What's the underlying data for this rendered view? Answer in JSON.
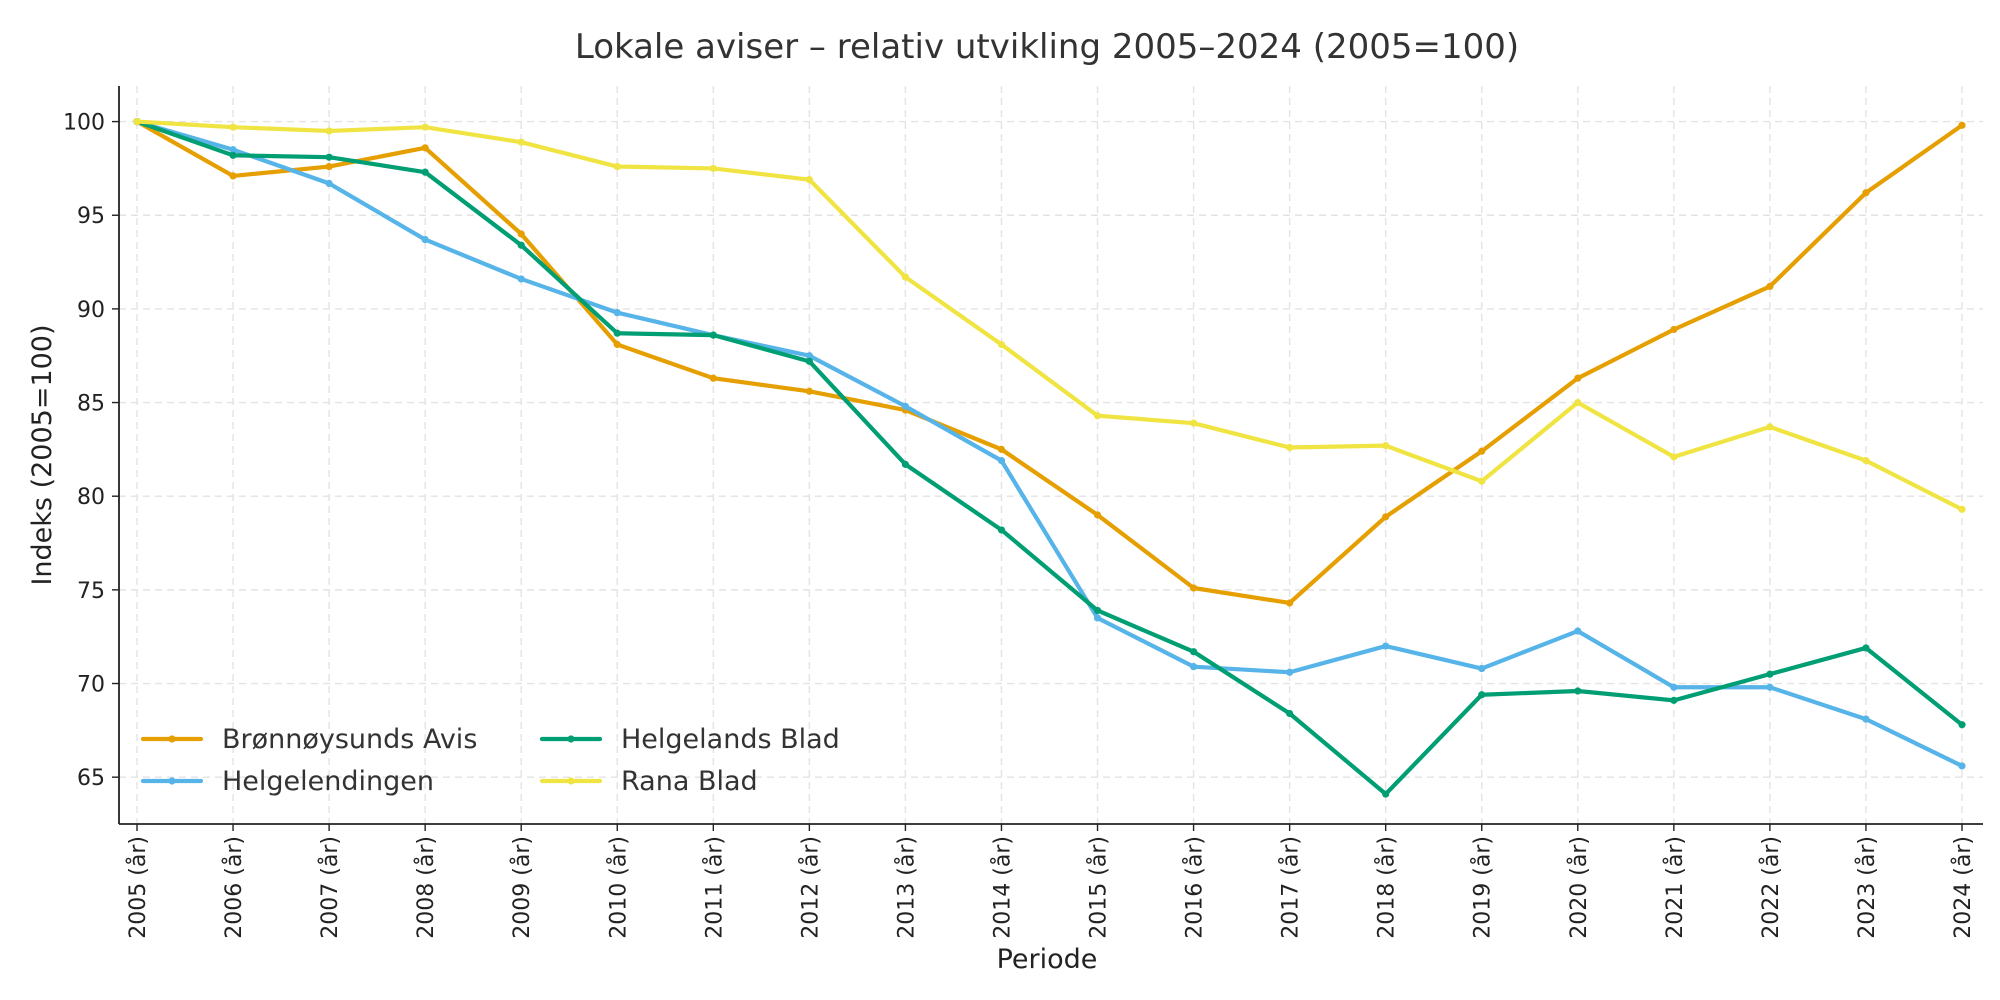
{
  "chart_data": {
    "type": "line",
    "title": "Lokale aviser – relativ utvikling 2005–2024 (2005=100)",
    "xlabel": "Periode",
    "ylabel": "Indeks (2005=100)",
    "ylim": [
      62.5,
      101.9
    ],
    "yticks": [
      65,
      70,
      75,
      80,
      85,
      90,
      95,
      100
    ],
    "grid": true,
    "legend_position": "lower-left",
    "categories": [
      "2005 (år)",
      "2006 (år)",
      "2007 (år)",
      "2008 (år)",
      "2009 (år)",
      "2010 (år)",
      "2011 (år)",
      "2012 (år)",
      "2013 (år)",
      "2014 (år)",
      "2015 (år)",
      "2016 (år)",
      "2017 (år)",
      "2018 (år)",
      "2019 (år)",
      "2020 (år)",
      "2021 (år)",
      "2022 (år)",
      "2023 (år)",
      "2024 (år)"
    ],
    "series": [
      {
        "name": "Brønnøysunds Avis",
        "color": "#E69F00",
        "values": [
          100,
          97.1,
          97.6,
          98.6,
          94.0,
          88.1,
          86.3,
          85.6,
          84.6,
          82.5,
          79.0,
          75.1,
          74.3,
          78.9,
          82.4,
          86.3,
          88.9,
          91.2,
          96.2,
          99.8
        ]
      },
      {
        "name": "Helgelendingen",
        "color": "#56B4E9",
        "values": [
          100,
          98.5,
          96.7,
          93.7,
          91.6,
          89.8,
          88.6,
          87.5,
          84.8,
          81.9,
          73.5,
          70.9,
          70.6,
          72.0,
          70.8,
          72.8,
          69.8,
          69.8,
          68.1,
          65.6
        ]
      },
      {
        "name": "Helgelands Blad",
        "color": "#009E73",
        "values": [
          100,
          98.2,
          98.1,
          97.3,
          93.4,
          88.7,
          88.6,
          87.2,
          81.7,
          78.2,
          73.9,
          71.7,
          68.4,
          64.1,
          69.4,
          69.6,
          69.1,
          70.5,
          71.9,
          67.8
        ]
      },
      {
        "name": "Rana Blad",
        "color": "#F0E442",
        "values": [
          100,
          99.7,
          99.5,
          99.7,
          98.9,
          97.6,
          97.5,
          96.9,
          91.7,
          88.1,
          84.3,
          83.9,
          82.6,
          82.7,
          80.8,
          85.0,
          82.1,
          83.7,
          81.9,
          79.3
        ]
      }
    ]
  }
}
